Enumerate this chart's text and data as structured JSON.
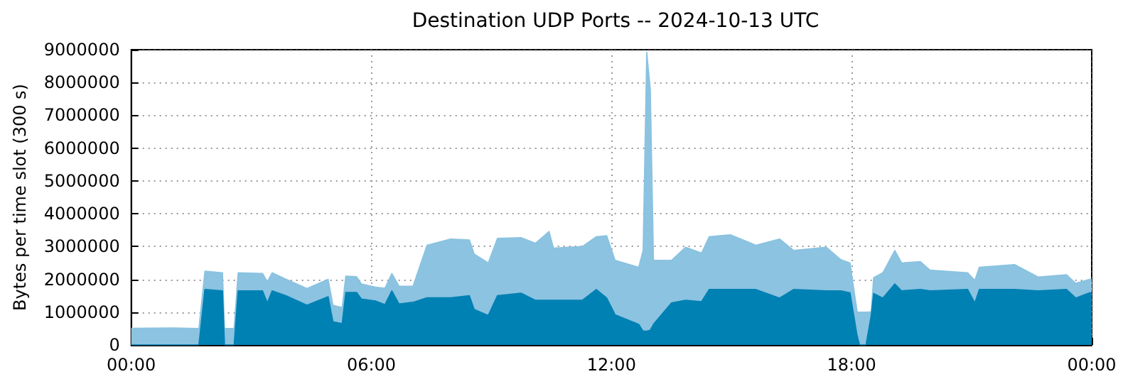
{
  "chart_data": {
    "type": "area",
    "title": "Destination UDP Ports -- 2024-10-13 UTC",
    "ylabel": "Bytes per time slot (300 s)",
    "stacked": true,
    "grid": true,
    "x": [
      0,
      1.0,
      1.69,
      1.84,
      2.28,
      2.33,
      2.57,
      2.67,
      3.28,
      3.4,
      3.52,
      3.87,
      4.39,
      4.92,
      5.04,
      5.27,
      5.36,
      5.63,
      5.75,
      6.1,
      6.34,
      6.51,
      6.69,
      7.04,
      7.39,
      7.98,
      8.45,
      8.57,
      8.92,
      9.15,
      9.74,
      10.1,
      10.44,
      10.55,
      11.27,
      11.62,
      11.88,
      12.09,
      12.68,
      12.79,
      12.88,
      12.97,
      13.05,
      13.5,
      13.85,
      14.25,
      14.44,
      14.97,
      15.61,
      16.2,
      16.55,
      17.37,
      17.73,
      17.96,
      18.14,
      18.2,
      18.36,
      18.49,
      18.55,
      18.78,
      19.08,
      19.25,
      19.72,
      19.96,
      20.9,
      21.08,
      21.19,
      22.07,
      22.66,
      23.37,
      23.6,
      23.95,
      24
    ],
    "series": [
      {
        "color": "#0081b3",
        "values": [
          0,
          0,
          0,
          1690000,
          1650000,
          0,
          0,
          1650000,
          1650000,
          1280000,
          1650000,
          1500000,
          1210000,
          1470000,
          710000,
          650000,
          1600000,
          1600000,
          1400000,
          1340000,
          1230000,
          1650000,
          1250000,
          1300000,
          1440000,
          1440000,
          1500000,
          1080000,
          900000,
          1500000,
          1580000,
          1360000,
          1360000,
          1360000,
          1360000,
          1690000,
          1430000,
          920000,
          630000,
          420000,
          420000,
          450000,
          630000,
          1280000,
          1360000,
          1320000,
          1690000,
          1690000,
          1690000,
          1430000,
          1690000,
          1650000,
          1650000,
          1590000,
          270000,
          0,
          0,
          900000,
          1570000,
          1430000,
          1860000,
          1650000,
          1690000,
          1650000,
          1690000,
          1280000,
          1690000,
          1690000,
          1650000,
          1690000,
          1430000,
          1590000,
          1590000
        ]
      },
      {
        "color": "#8bc3e1",
        "values": [
          510000,
          520000,
          500000,
          560000,
          550000,
          500000,
          500000,
          550000,
          530000,
          650000,
          550000,
          500000,
          510000,
          530000,
          500000,
          490000,
          500000,
          480000,
          460000,
          420000,
          500000,
          530000,
          540000,
          490000,
          1600000,
          1790000,
          1700000,
          1690000,
          1600000,
          1750000,
          1690000,
          1740000,
          2100000,
          1590000,
          1640000,
          1610000,
          1900000,
          1660000,
          1740000,
          2460000,
          8510000,
          7350000,
          1950000,
          1300000,
          1620000,
          1480000,
          1610000,
          1670000,
          1350000,
          1800000,
          1190000,
          1330000,
          950000,
          910000,
          730000,
          1000000,
          1000000,
          110000,
          480000,
          770000,
          1020000,
          850000,
          850000,
          630000,
          510000,
          690000,
          680000,
          760000,
          420000,
          450000,
          450000,
          410000,
          410000
        ]
      }
    ],
    "xlim": [
      0,
      24
    ],
    "xticks": [
      {
        "value": 0,
        "label": "00:00"
      },
      {
        "value": 6,
        "label": "06:00"
      },
      {
        "value": 12,
        "label": "12:00"
      },
      {
        "value": 18,
        "label": "18:00"
      },
      {
        "value": 24,
        "label": "00:00"
      }
    ],
    "ylim": [
      0,
      9000000
    ],
    "yticks": [
      0,
      1000000,
      2000000,
      3000000,
      4000000,
      5000000,
      6000000,
      7000000,
      8000000,
      9000000
    ]
  }
}
